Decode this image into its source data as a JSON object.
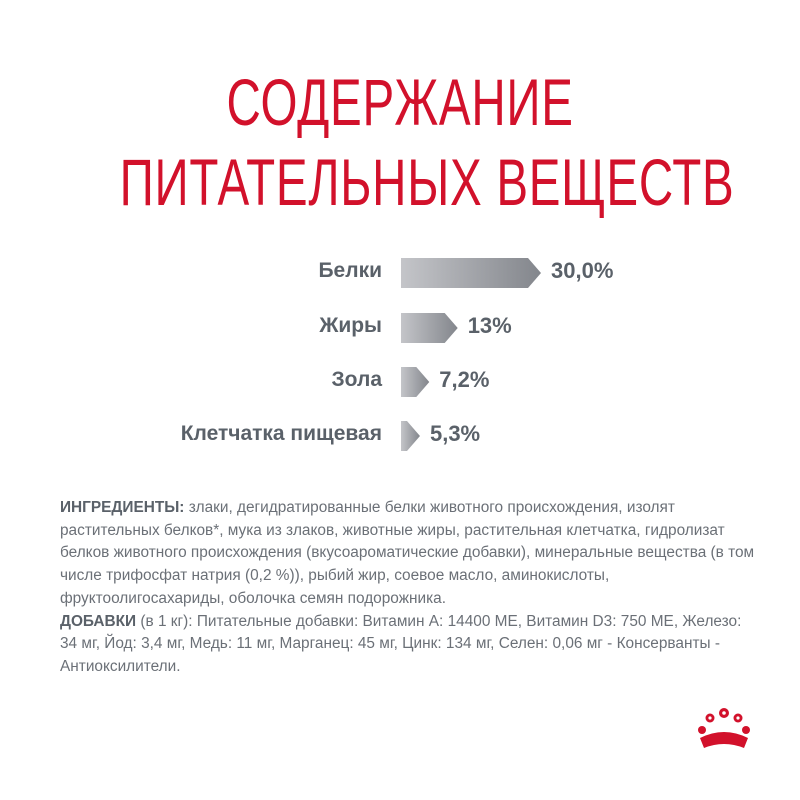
{
  "title": [
    "СОДЕРЖАНИЕ",
    "ПИТАТЕЛЬНЫХ ВЕЩЕСТВ"
  ],
  "chart_data": {
    "type": "bar",
    "orientation": "horizontal",
    "categories": [
      "Белки",
      "Жиры",
      "Зола",
      "Клетчатка пищевая"
    ],
    "values": [
      30.0,
      13,
      7.2,
      5.3
    ],
    "value_labels": [
      "30,0%",
      "13%",
      "7,2%",
      "5,3%"
    ],
    "unit": "%",
    "grid": false,
    "bar_color_gradient": [
      "#c4c5c9",
      "#83868c"
    ]
  },
  "ingredients": {
    "label": "ИНГРЕДИЕНТЫ:",
    "text": " злаки, дегидратированные белки животного происхождения, изолят растительных белков*, мука из злаков, животные жиры, растительная клетчатка, гидролизат белков животного происхождения (вкусоароматические добавки), минеральные вещества (в том числе трифосфат натрия (0,2 %)), рыбий жир, соевое масло, аминокислоты, фруктоолигосахариды, оболочка семян подорожника."
  },
  "additives": {
    "label": "ДОБАВКИ",
    "text": " (в 1 кг): Питательные добавки: Витамин А: 14400 МЕ, Витамин D3: 750 МЕ, Железо: 34 мг, Йод: 3,4 мг, Медь: 11 мг, Марганец: 45 мг, Цинк: 134 мг, Селен: 0,06 мг - Консерванты - Антиоксилители."
  },
  "brand_color": "#d2112b",
  "logo": "royal-canin-crown"
}
